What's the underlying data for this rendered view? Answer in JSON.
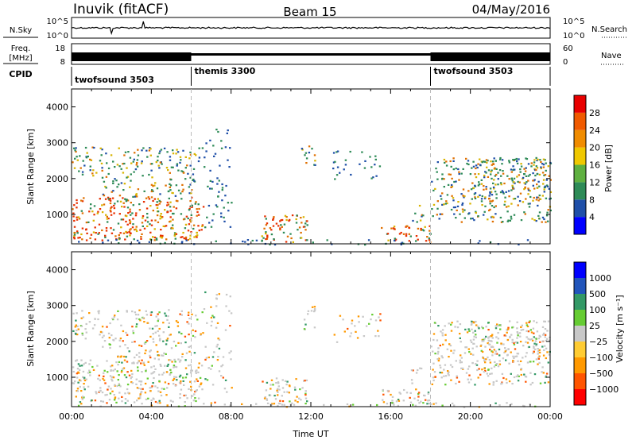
{
  "header": {
    "station": "Inuvik (fitACF)",
    "beam": "Beam 15",
    "date": "04/May/2016"
  },
  "strips": {
    "nsky_label": "N.Sky",
    "nsearch_label": "N.Search",
    "noise_ticks": [
      "10^5",
      "10^0"
    ],
    "freq_label": "Freq.",
    "freq_unit": "[MHz]",
    "freq_ticks": [
      "18",
      "8"
    ],
    "nave_label": "Nave",
    "nave_ticks": [
      "60",
      "0"
    ],
    "cpid_label": "CPID",
    "cpid_segments": [
      {
        "name": "twofsound 3503",
        "start_h": 0
      },
      {
        "name": "themis 3300",
        "start_h": 6
      },
      {
        "name": "twofsound 3503",
        "start_h": 18
      }
    ]
  },
  "colors": {
    "power": [
      "#0000ff",
      "#1f4fa8",
      "#2e8b57",
      "#5fb040",
      "#f0c800",
      "#f08c00",
      "#f05a00",
      "#e80000"
    ],
    "velocity": [
      "#ff0000",
      "#ff5500",
      "#ff9900",
      "#ffcc33",
      "#c8c8c8",
      "#66cc33",
      "#339966",
      "#2255bb",
      "#0000ff"
    ],
    "power_fill": [
      "#2e8b57",
      "#d9b400",
      "#e07000",
      "#e83000",
      "#1f4fa8"
    ]
  },
  "chart_data": [
    {
      "type": "heatmap",
      "title": "Power",
      "xlabel": "",
      "ylabel": "Slant Range [km]",
      "xlim": [
        0,
        24
      ],
      "ylim": [
        180,
        4500
      ],
      "x_ticks": [],
      "y_ticks": [
        1000,
        2000,
        3000,
        4000
      ],
      "colorbar_label": "Power [dB]",
      "colorbar_ticks": [
        "4",
        "8",
        "12",
        "16",
        "20",
        "24",
        "28"
      ]
    },
    {
      "type": "heatmap",
      "title": "Velocity",
      "xlabel": "Time UT",
      "ylabel": "Slant Range [km]",
      "xlim": [
        0,
        24
      ],
      "ylim": [
        180,
        4500
      ],
      "x_ticks": [
        "00:00",
        "04:00",
        "08:00",
        "12:00",
        "16:00",
        "20:00",
        "00:00"
      ],
      "y_ticks": [
        1000,
        2000,
        3000,
        4000
      ],
      "colorbar_label": "Velocity [m s⁻¹]",
      "colorbar_ticks": [
        "1000",
        "500",
        "100",
        "25",
        "−25",
        "−100",
        "−500",
        "−1000"
      ]
    }
  ],
  "scatter_regions": [
    {
      "x0": 0.0,
      "x1": 6.6,
      "y0": 2100,
      "y1": 2900,
      "kind": "mixed"
    },
    {
      "x0": 0.0,
      "x1": 6.6,
      "y0": 300,
      "y1": 1500,
      "kind": "strong"
    },
    {
      "x0": 1.5,
      "x1": 6.2,
      "y0": 1500,
      "y1": 2100,
      "kind": "mixed"
    },
    {
      "x0": 6.6,
      "x1": 8.0,
      "y0": 600,
      "y1": 3400,
      "kind": "weak"
    },
    {
      "x0": 9.5,
      "x1": 11.8,
      "y0": 250,
      "y1": 1000,
      "kind": "strong"
    },
    {
      "x0": 11.5,
      "x1": 12.2,
      "y0": 2300,
      "y1": 3000,
      "kind": "mixed"
    },
    {
      "x0": 13.0,
      "x1": 15.5,
      "y0": 2000,
      "y1": 2800,
      "kind": "weak"
    },
    {
      "x0": 15.5,
      "x1": 18.0,
      "y0": 250,
      "y1": 700,
      "kind": "strong"
    },
    {
      "x0": 17.0,
      "x1": 17.6,
      "y0": 800,
      "y1": 1300,
      "kind": "mixed"
    },
    {
      "x0": 18.0,
      "x1": 24.0,
      "y0": 800,
      "y1": 2600,
      "kind": "mixed"
    },
    {
      "x0": 20.0,
      "x1": 24.0,
      "y0": 1400,
      "y1": 2600,
      "kind": "mixed"
    },
    {
      "x0": 0.0,
      "x1": 24.0,
      "y0": 180,
      "y1": 320,
      "kind": "weak"
    }
  ]
}
